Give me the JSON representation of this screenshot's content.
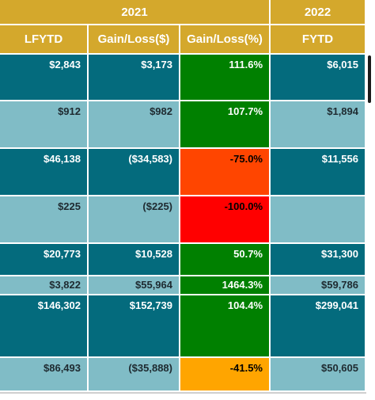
{
  "headers": {
    "year_left": "2021",
    "year_right": "2022",
    "columns": [
      "LFYTD",
      "Gain/Loss($)",
      "Gain/Loss(%)",
      "FYTD"
    ]
  },
  "colors": {
    "header_gold": "#d4a82c",
    "row_dark": "#046b7d",
    "row_light": "#80bcc6",
    "pct_green": "#008000",
    "pct_orange_red": "#ff4500",
    "pct_red": "#ff0000",
    "pct_orange": "#ffa500"
  },
  "rows": [
    {
      "lfytd": "$2,843",
      "gain": "$3,173",
      "pct": "111.6%",
      "fytd": "$6,015",
      "pct_color": "green"
    },
    {
      "lfytd": "$912",
      "gain": "$982",
      "pct": "107.7%",
      "fytd": "$1,894",
      "pct_color": "green"
    },
    {
      "lfytd": "$46,138",
      "gain": "($34,583)",
      "pct": "-75.0%",
      "fytd": "$11,556",
      "pct_color": "orange-red"
    },
    {
      "lfytd": "$225",
      "gain": "($225)",
      "pct": "-100.0%",
      "fytd": "",
      "pct_color": "red"
    },
    {
      "lfytd": "$20,773",
      "gain": "$10,528",
      "pct": "50.7%",
      "fytd": "$31,300",
      "pct_color": "green"
    },
    {
      "lfytd": "$3,822",
      "gain": "$55,964",
      "pct": "1464.3%",
      "fytd": "$59,786",
      "pct_color": "green"
    },
    {
      "lfytd": "$146,302",
      "gain": "$152,739",
      "pct": "104.4%",
      "fytd": "$299,041",
      "pct_color": "green"
    },
    {
      "lfytd": "$86,493",
      "gain": "($35,888)",
      "pct": "-41.5%",
      "fytd": "$50,605",
      "pct_color": "orange"
    }
  ]
}
